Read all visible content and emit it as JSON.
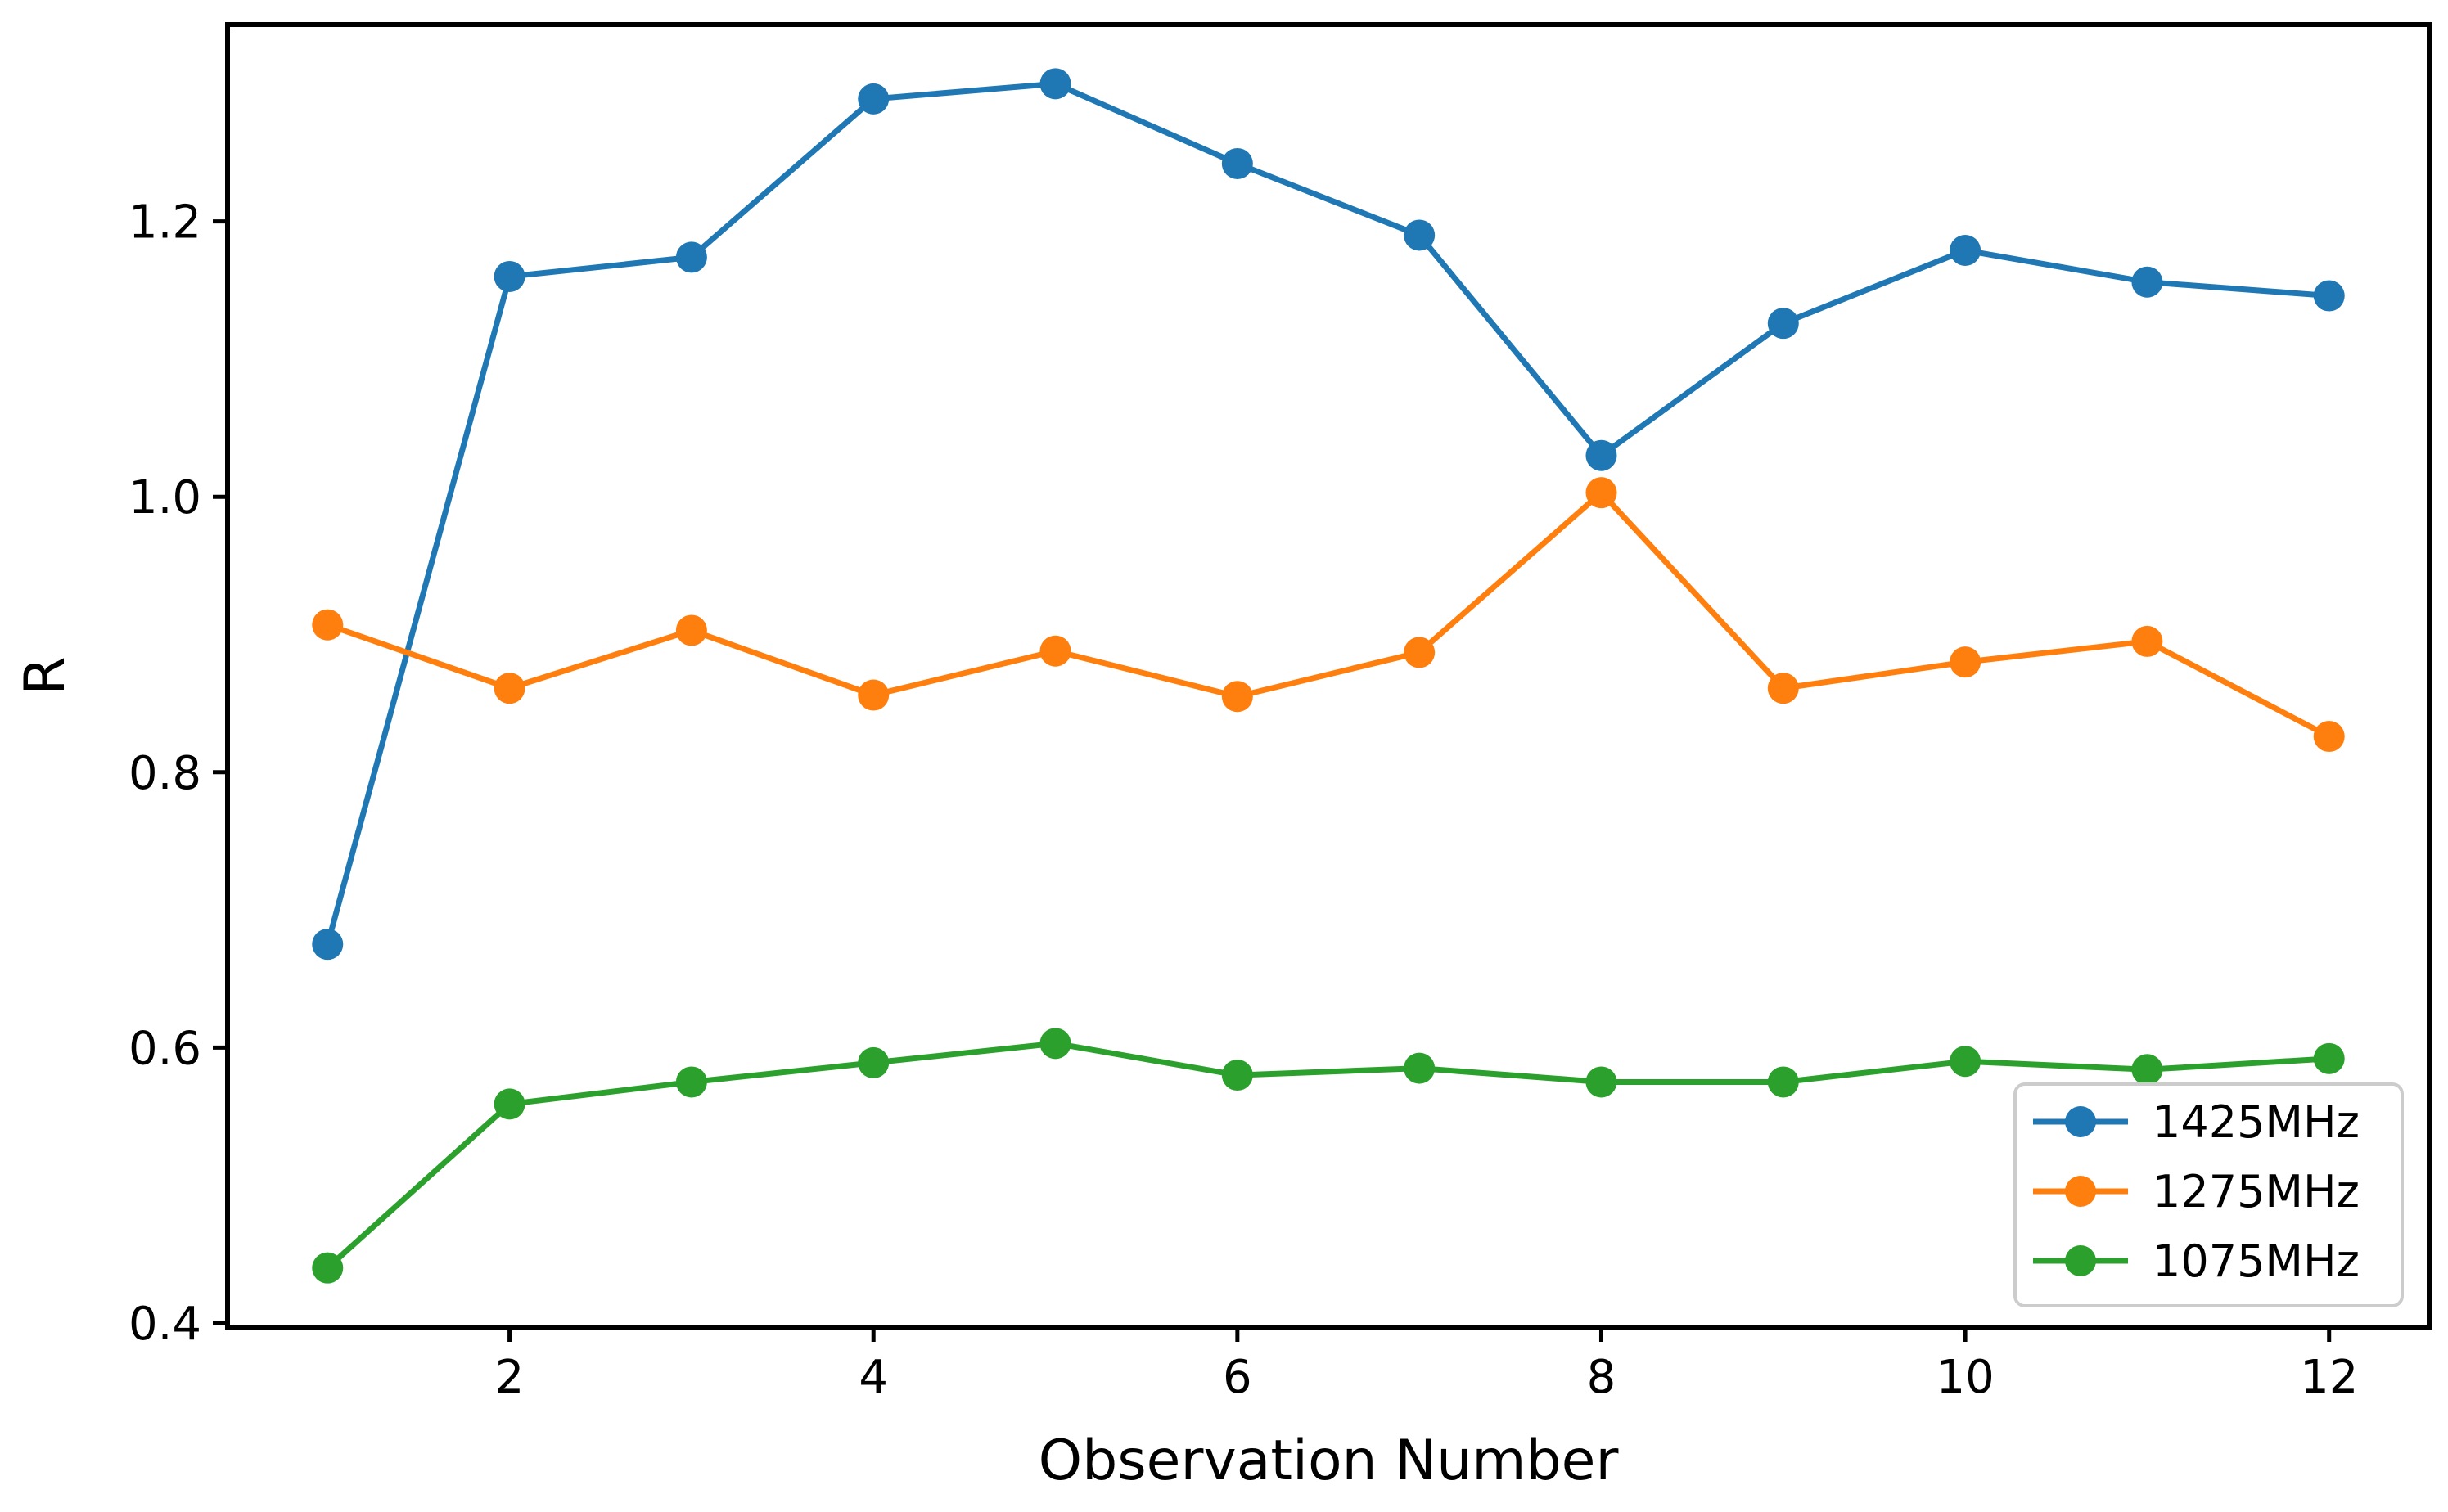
{
  "figure": {
    "background": "#ffffff",
    "axis_color": "#000000",
    "legend_border_color": "#cccccc"
  },
  "chart_data": {
    "type": "line",
    "title": "",
    "xlabel": "Observation Number",
    "ylabel": "R",
    "x": [
      1,
      2,
      3,
      4,
      5,
      6,
      7,
      8,
      9,
      10,
      11,
      12
    ],
    "series": [
      {
        "name": "1425MHz",
        "color": "#1f77b4",
        "values": [
          0.675,
          1.16,
          1.174,
          1.289,
          1.3,
          1.242,
          1.19,
          1.03,
          1.126,
          1.179,
          1.156,
          1.146
        ]
      },
      {
        "name": "1275MHz",
        "color": "#ff7f0e",
        "values": [
          0.907,
          0.861,
          0.903,
          0.856,
          0.888,
          0.855,
          0.887,
          1.003,
          0.861,
          0.88,
          0.895,
          0.826
        ]
      },
      {
        "name": "1075MHz",
        "color": "#2ca02c",
        "values": [
          0.44,
          0.559,
          0.575,
          0.589,
          0.603,
          0.58,
          0.585,
          0.575,
          0.575,
          0.59,
          0.584,
          0.592
        ]
      }
    ],
    "xticks": {
      "values": [
        2,
        4,
        6,
        8,
        10,
        12
      ],
      "labels": [
        "2",
        "4",
        "6",
        "8",
        "10",
        "12"
      ]
    },
    "yticks": {
      "values": [
        0.4,
        0.6,
        0.8,
        1.0,
        1.2
      ],
      "labels": [
        "0.4",
        "0.6",
        "0.8",
        "1.0",
        "1.2"
      ]
    },
    "xlim": [
      0.45,
      12.55
    ],
    "ylim": [
      0.397,
      1.343
    ],
    "grid": false,
    "legend": {
      "position": "lower right",
      "entries": [
        "1425MHz",
        "1275MHz",
        "1075MHz"
      ]
    }
  }
}
